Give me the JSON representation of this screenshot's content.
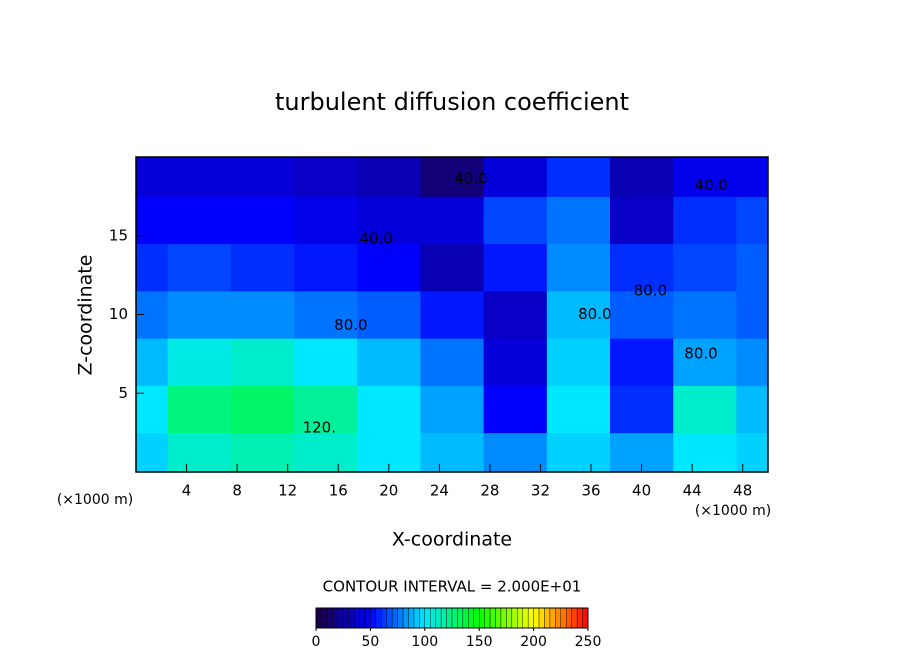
{
  "chart_data": {
    "type": "contour",
    "title": "turbulent diffusion coefficient",
    "xlabel": "X-coordinate",
    "ylabel": "Z-coordinate",
    "xunit": "(×1000 m)",
    "yunit": "(×1000 m)",
    "xlim": [
      0,
      50
    ],
    "ylim": [
      0,
      20
    ],
    "xticks": [
      4,
      8,
      12,
      16,
      20,
      24,
      28,
      32,
      36,
      40,
      44,
      48
    ],
    "yticks": [
      5,
      10,
      15
    ],
    "x": [
      0,
      5,
      10,
      15,
      20,
      25,
      30,
      35,
      40,
      45,
      50
    ],
    "y": [
      1,
      4,
      7,
      10,
      13,
      16,
      19
    ],
    "z": [
      [
        95,
        110,
        115,
        110,
        100,
        90,
        80,
        95,
        85,
        100,
        95
      ],
      [
        100,
        125,
        130,
        120,
        100,
        85,
        50,
        100,
        60,
        110,
        90
      ],
      [
        90,
        105,
        110,
        100,
        90,
        75,
        40,
        95,
        55,
        85,
        80
      ],
      [
        75,
        80,
        80,
        75,
        70,
        55,
        35,
        90,
        70,
        75,
        70
      ],
      [
        60,
        65,
        60,
        55,
        50,
        30,
        55,
        80,
        60,
        65,
        70
      ],
      [
        50,
        50,
        50,
        45,
        40,
        40,
        65,
        75,
        35,
        60,
        65
      ],
      [
        40,
        40,
        40,
        35,
        30,
        15,
        40,
        60,
        30,
        45,
        45
      ]
    ],
    "contour_labels": [
      {
        "x": 26.5,
        "y": 18.6,
        "value": 40,
        "label": "40.0"
      },
      {
        "x": 45.5,
        "y": 18.2,
        "value": 40,
        "label": "40.0"
      },
      {
        "x": 19,
        "y": 14.8,
        "value": 40,
        "label": "40.0"
      },
      {
        "x": 17,
        "y": 9.3,
        "value": 80,
        "label": "80.0"
      },
      {
        "x": 36.3,
        "y": 10,
        "value": 80,
        "label": "80.0"
      },
      {
        "x": 40.7,
        "y": 11.5,
        "value": 80,
        "label": "80.0"
      },
      {
        "x": 44.7,
        "y": 7.5,
        "value": 80,
        "label": "80.0"
      },
      {
        "x": 14.5,
        "y": 2.8,
        "value": 120,
        "label": "120."
      }
    ],
    "contour_interval": "CONTOUR INTERVAL = 2.000E+01",
    "zlim": [
      0,
      250
    ],
    "colorbar_ticks": [
      0,
      50,
      100,
      150,
      200,
      250
    ],
    "colormap": [
      "#1a0040",
      "#0000ff",
      "#00e8ff",
      "#00ff00",
      "#ffff00",
      "#ff0000"
    ]
  }
}
